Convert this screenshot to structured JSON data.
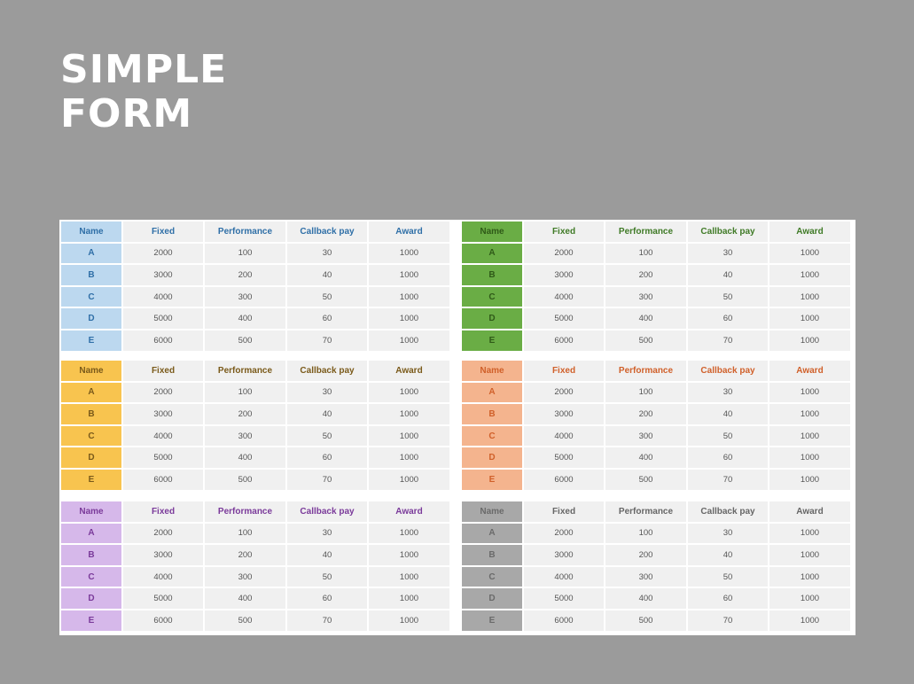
{
  "title": {
    "line1": "SIMPLE",
    "line2": "FORM"
  },
  "columns": [
    "Name",
    "Fixed",
    "Performance",
    "Callback pay",
    "Award"
  ],
  "rows": [
    [
      "A",
      "2000",
      "100",
      "30",
      "1000"
    ],
    [
      "B",
      "3000",
      "200",
      "40",
      "1000"
    ],
    [
      "C",
      "4000",
      "300",
      "50",
      "1000"
    ],
    [
      "D",
      "5000",
      "400",
      "60",
      "1000"
    ],
    [
      "E",
      "6000",
      "500",
      "70",
      "1000"
    ]
  ],
  "tables": [
    {
      "color": "blue",
      "header_bg": "#bcd8ef",
      "name_bg": "#bcd8ef",
      "accent": "#2f6fa7"
    },
    {
      "color": "green",
      "header_bg": "#6aad45",
      "name_bg": "#6aad45",
      "accent": "#3f7a26"
    },
    {
      "color": "yellow",
      "header_bg": "#f8c44f",
      "name_bg": "#f8c44f",
      "accent": "#7a5a1a"
    },
    {
      "color": "orange",
      "header_bg": "#f4b48e",
      "name_bg": "#f4b48e",
      "accent": "#d0602a"
    },
    {
      "color": "purple",
      "header_bg": "#d6b8ea",
      "name_bg": "#d6b8ea",
      "accent": "#7a3a9a"
    },
    {
      "color": "gray",
      "header_bg": "#a8a8a8",
      "name_bg": "#a8a8a8",
      "accent": "#666666"
    }
  ]
}
